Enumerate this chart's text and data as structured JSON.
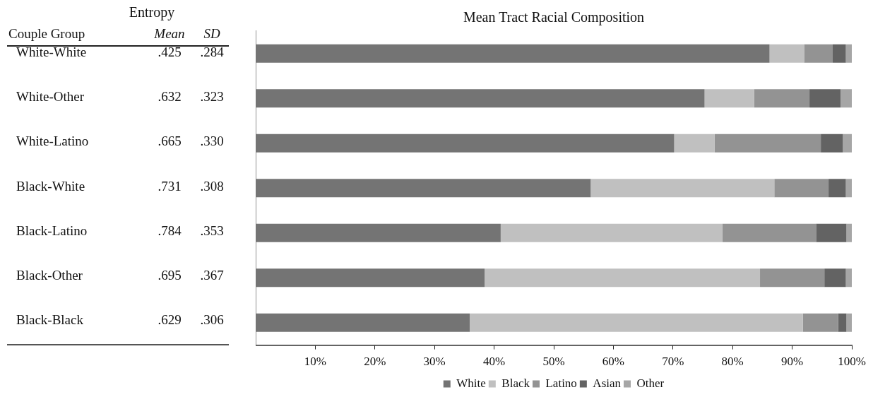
{
  "chart_data": [
    {
      "type": "other",
      "title": "Entropy",
      "ylabel": "Couple Group",
      "categories": [
        "White-White",
        "White-Other",
        "White-Latino",
        "Black-White",
        "Black-Latino",
        "Black-Other",
        "Black-Black"
      ],
      "series": [
        {
          "name": "Mean",
          "values": [
            0.425,
            0.632,
            0.665,
            0.731,
            0.784,
            0.695,
            0.629
          ],
          "value_labels": [
            ".425",
            ".632",
            ".665",
            ".731",
            ".784",
            ".695",
            ".629"
          ]
        },
        {
          "name": "SD",
          "values": [
            0.284,
            0.323,
            0.33,
            0.308,
            0.353,
            0.367,
            0.306
          ],
          "value_labels": [
            ".284",
            ".323",
            ".330",
            ".308",
            ".353",
            ".367",
            ".306"
          ]
        }
      ]
    },
    {
      "type": "bar",
      "title": "Mean Tract Racial Composition",
      "orientation": "horizontal",
      "stacked": true,
      "categories": [
        null,
        null,
        null,
        null,
        null,
        null,
        null
      ],
      "tick_labels": "x",
      "legend": "bottom",
      "grid": false,
      "xlim": [
        0,
        100
      ],
      "xticks": [
        {
          "value": 10,
          "label": "10%"
        },
        {
          "value": 20,
          "label": "20%"
        },
        {
          "value": 30,
          "label": "30%"
        },
        {
          "value": 40,
          "label": "40%"
        },
        {
          "value": 50,
          "label": "50%"
        },
        {
          "value": 60,
          "label": "60%"
        },
        {
          "value": 70,
          "label": "70%"
        },
        {
          "value": 80,
          "label": "80%"
        },
        {
          "value": 90,
          "label": "90%"
        },
        {
          "value": 100,
          "label": "100%"
        }
      ],
      "series": [
        {
          "name": "White",
          "color": "#747474",
          "values": [
            86.2,
            75.3,
            70.2,
            56.2,
            41.1,
            38.4,
            35.9
          ]
        },
        {
          "name": "Black",
          "color": "#c0c0c0",
          "values": [
            5.8,
            8.3,
            6.8,
            30.8,
            37.2,
            46.2,
            55.9
          ]
        },
        {
          "name": "Latino",
          "color": "#939393",
          "values": [
            4.8,
            9.3,
            17.8,
            9.1,
            15.7,
            10.8,
            5.9
          ]
        },
        {
          "name": "Asian",
          "color": "#636363",
          "values": [
            2.2,
            5.2,
            3.7,
            2.9,
            5.1,
            3.6,
            1.4
          ]
        },
        {
          "name": "Other",
          "color": "#a6a6a6",
          "values": [
            1.0,
            1.9,
            1.5,
            1.0,
            0.9,
            1.0,
            0.9
          ]
        }
      ]
    }
  ]
}
